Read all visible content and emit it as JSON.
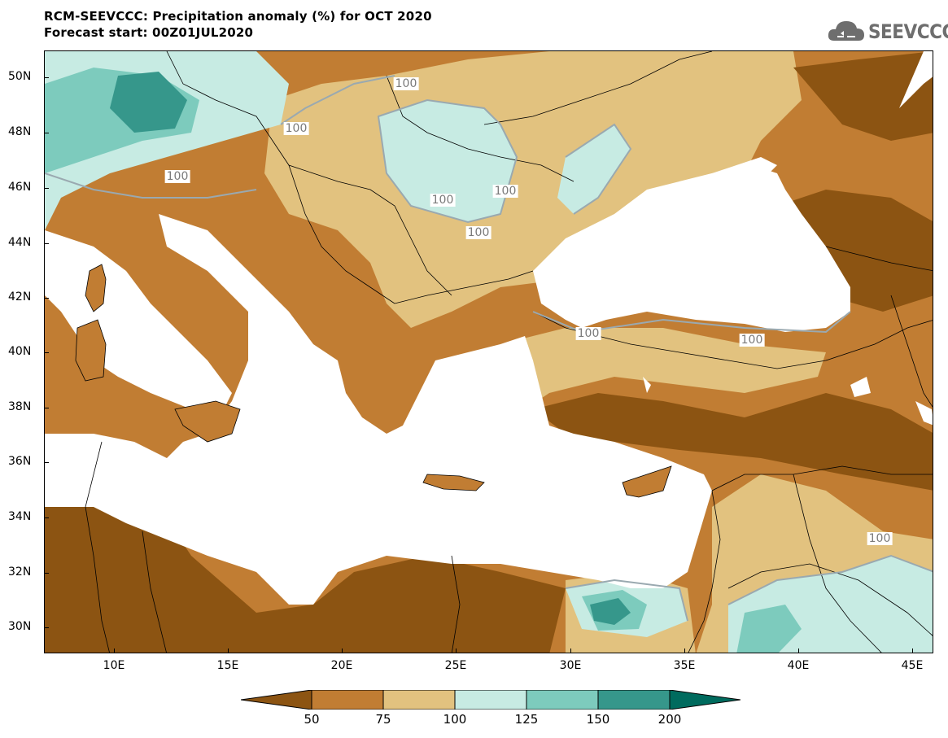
{
  "header": {
    "title_line1": "RCM-SEEVCCC: Precipitation anomaly (%) for OCT 2020",
    "title_line2": "Forecast start: 00Z01JUL2020",
    "logo_text": "SEEVCCC"
  },
  "map": {
    "lon_range": [
      7,
      46
    ],
    "lat_range": [
      29,
      51
    ],
    "y_ticks": [
      "50N",
      "48N",
      "46N",
      "44N",
      "42N",
      "40N",
      "38N",
      "36N",
      "34N",
      "32N",
      "30N"
    ],
    "x_ticks": [
      "10E",
      "15E",
      "20E",
      "25E",
      "30E",
      "35E",
      "40E",
      "45E"
    ],
    "contour_labels": [
      "100",
      "100",
      "100",
      "100",
      "100",
      "100",
      "100",
      "100",
      "100"
    ]
  },
  "legend": {
    "levels": [
      "50",
      "75",
      "100",
      "125",
      "150",
      "200"
    ],
    "colors": [
      "#8c5412",
      "#c17d33",
      "#e2c27f",
      "#c7ebe3",
      "#7dcbbd",
      "#36978b",
      "#006b5e"
    ]
  }
}
